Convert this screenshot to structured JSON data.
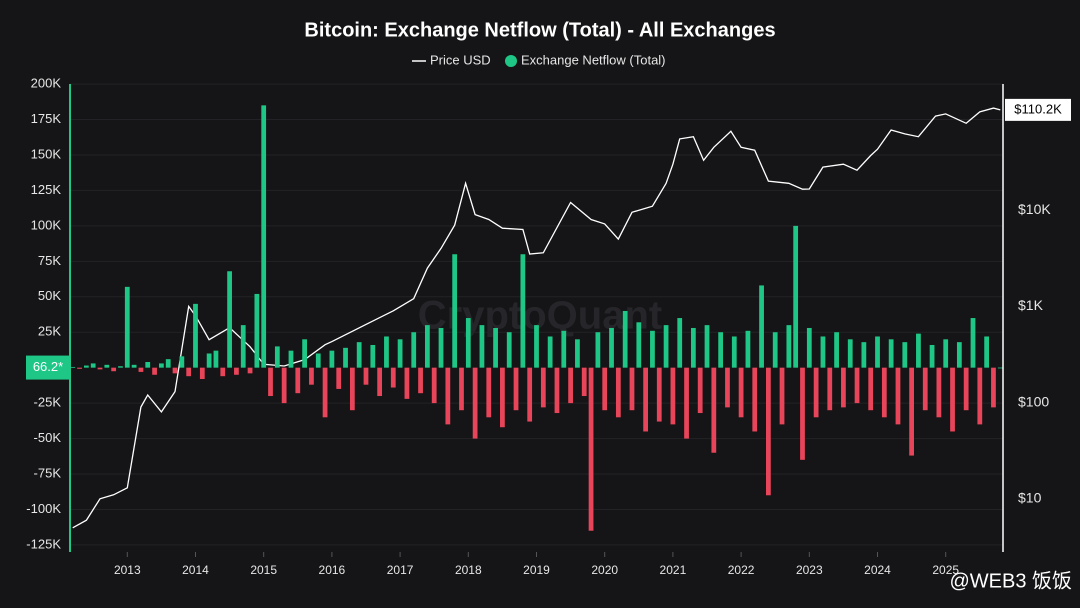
{
  "chart_data": {
    "type": "bar",
    "title": "Bitcoin: Exchange Netflow (Total) - All Exchanges",
    "watermark": "CryptoQuant",
    "credit": "@WEB3 饭饭",
    "xlim": [
      2012.16,
      2025.84
    ],
    "xticks": [
      2013,
      2014,
      2015,
      2016,
      2017,
      2018,
      2019,
      2020,
      2021,
      2022,
      2023,
      2024,
      2025
    ],
    "ylim": [
      -130000,
      205000
    ],
    "yticks": [
      {
        "value": 200000,
        "label": "200K"
      },
      {
        "value": 175000,
        "label": "175K"
      },
      {
        "value": 150000,
        "label": "150K"
      },
      {
        "value": 125000,
        "label": "125K"
      },
      {
        "value": 100000,
        "label": "100K"
      },
      {
        "value": 75000,
        "label": "75K"
      },
      {
        "value": 50000,
        "label": "50K"
      },
      {
        "value": 25000,
        "label": "25K"
      },
      {
        "value": -25000,
        "label": "-25K"
      },
      {
        "value": -50000,
        "label": "-50K"
      },
      {
        "value": -75000,
        "label": "-75K"
      },
      {
        "value": -100000,
        "label": "-100K"
      },
      {
        "value": -125000,
        "label": "-125K"
      }
    ],
    "y2lim": [
      2.8,
      242000
    ],
    "y2log": true,
    "y2ticks": [
      {
        "value": 10,
        "label": "$10"
      },
      {
        "value": 100,
        "label": "$100"
      },
      {
        "value": 1000,
        "label": "$1K"
      },
      {
        "value": 10000,
        "label": "$10K"
      }
    ],
    "series": [
      {
        "name": "Price USD",
        "type": "line",
        "axis": "y2",
        "color": "#ffffff",
        "x": [
          2012.2,
          2012.4,
          2012.6,
          2012.8,
          2013.0,
          2013.2,
          2013.3,
          2013.5,
          2013.7,
          2013.9,
          2014.0,
          2014.2,
          2014.5,
          2014.8,
          2015.0,
          2015.3,
          2015.6,
          2015.9,
          2016.0,
          2016.5,
          2016.9,
          2017.2,
          2017.4,
          2017.6,
          2017.8,
          2017.96,
          2018.1,
          2018.3,
          2018.5,
          2018.8,
          2018.9,
          2019.1,
          2019.5,
          2019.8,
          2020.0,
          2020.2,
          2020.4,
          2020.7,
          2020.9,
          2021.0,
          2021.1,
          2021.3,
          2021.45,
          2021.6,
          2021.85,
          2022.0,
          2022.2,
          2022.4,
          2022.7,
          2022.9,
          2023.0,
          2023.2,
          2023.5,
          2023.7,
          2023.9,
          2024.0,
          2024.2,
          2024.4,
          2024.6,
          2024.85,
          2025.0,
          2025.3,
          2025.5,
          2025.7,
          2025.8
        ],
        "values": [
          5,
          6,
          10,
          11,
          13,
          90,
          120,
          80,
          130,
          1000,
          800,
          450,
          600,
          380,
          250,
          240,
          280,
          400,
          430,
          650,
          900,
          1200,
          2500,
          4000,
          7000,
          19000,
          9000,
          8000,
          6500,
          6300,
          3500,
          3600,
          12000,
          8000,
          7200,
          5000,
          9500,
          11000,
          19000,
          30000,
          55000,
          58000,
          33000,
          45000,
          66000,
          45000,
          42000,
          20000,
          19000,
          16500,
          16600,
          28000,
          30000,
          26000,
          37000,
          43000,
          68000,
          62000,
          58000,
          95000,
          100000,
          80000,
          105000,
          115000,
          110200
        ]
      },
      {
        "name": "Exchange Netflow (Total)",
        "type": "bar",
        "axis": "y",
        "color": "#1fc786",
        "negative_color": "#e8445a",
        "x": [
          2012.2,
          2012.3,
          2012.4,
          2012.5,
          2012.6,
          2012.7,
          2012.8,
          2012.9,
          2013.0,
          2013.1,
          2013.2,
          2013.3,
          2013.4,
          2013.5,
          2013.6,
          2013.7,
          2013.8,
          2013.9,
          2014.0,
          2014.1,
          2014.2,
          2014.3,
          2014.4,
          2014.5,
          2014.6,
          2014.7,
          2014.8,
          2014.9,
          2015.0,
          2015.1,
          2015.2,
          2015.3,
          2015.4,
          2015.5,
          2015.6,
          2015.7,
          2015.8,
          2015.9,
          2016.0,
          2016.1,
          2016.2,
          2016.3,
          2016.4,
          2016.5,
          2016.6,
          2016.7,
          2016.8,
          2016.9,
          2017.0,
          2017.1,
          2017.2,
          2017.3,
          2017.4,
          2017.5,
          2017.6,
          2017.7,
          2017.8,
          2017.9,
          2018.0,
          2018.1,
          2018.2,
          2018.3,
          2018.4,
          2018.5,
          2018.6,
          2018.7,
          2018.8,
          2018.9,
          2019.0,
          2019.1,
          2019.2,
          2019.3,
          2019.4,
          2019.5,
          2019.6,
          2019.7,
          2019.8,
          2019.9,
          2020.0,
          2020.1,
          2020.2,
          2020.3,
          2020.4,
          2020.5,
          2020.6,
          2020.7,
          2020.8,
          2020.9,
          2021.0,
          2021.1,
          2021.2,
          2021.3,
          2021.4,
          2021.5,
          2021.6,
          2021.7,
          2021.8,
          2021.9,
          2022.0,
          2022.1,
          2022.2,
          2022.3,
          2022.4,
          2022.5,
          2022.6,
          2022.7,
          2022.8,
          2022.9,
          2023.0,
          2023.1,
          2023.2,
          2023.3,
          2023.4,
          2023.5,
          2023.6,
          2023.7,
          2023.8,
          2023.9,
          2024.0,
          2024.1,
          2024.2,
          2024.3,
          2024.4,
          2024.5,
          2024.6,
          2024.7,
          2024.8,
          2024.9,
          2025.0,
          2025.1,
          2025.2,
          2025.3,
          2025.4,
          2025.5,
          2025.6,
          2025.7,
          2025.8
        ],
        "values": [
          500,
          -800,
          1500,
          3000,
          -1200,
          2000,
          -2500,
          1000,
          57000,
          2000,
          -3000,
          4000,
          -5000,
          3000,
          6000,
          -4000,
          8000,
          -6000,
          45000,
          -8000,
          10000,
          12000,
          -6000,
          68000,
          -5000,
          30000,
          -4000,
          52000,
          185000,
          -20000,
          15000,
          -25000,
          12000,
          -18000,
          20000,
          -12000,
          10000,
          -35000,
          12000,
          -15000,
          14000,
          -30000,
          18000,
          -12000,
          16000,
          -20000,
          22000,
          -14000,
          20000,
          -22000,
          25000,
          -18000,
          30000,
          -25000,
          28000,
          -40000,
          80000,
          -30000,
          35000,
          -50000,
          30000,
          -35000,
          28000,
          -42000,
          25000,
          -30000,
          80000,
          -38000,
          30000,
          -28000,
          22000,
          -32000,
          26000,
          -25000,
          20000,
          -20000,
          -115000,
          25000,
          -30000,
          28000,
          -35000,
          40000,
          -30000,
          32000,
          -45000,
          26000,
          -38000,
          30000,
          -40000,
          35000,
          -50000,
          28000,
          -32000,
          30000,
          -60000,
          25000,
          -28000,
          22000,
          -35000,
          26000,
          -45000,
          58000,
          -90000,
          25000,
          -40000,
          30000,
          100000,
          -65000,
          28000,
          -35000,
          22000,
          -30000,
          25000,
          -28000,
          20000,
          -25000,
          18000,
          -30000,
          22000,
          -35000,
          20000,
          -40000,
          18000,
          -62000,
          24000,
          -30000,
          16000,
          -35000,
          20000,
          -45000,
          18000,
          -30000,
          35000,
          -40000,
          22000,
          -28000,
          66.2
        ]
      }
    ],
    "annotations": [
      {
        "axis": "y2",
        "value": 110200,
        "label": "$110.2K"
      },
      {
        "axis": "y",
        "value": 66.2,
        "label": "66.2*"
      }
    ]
  }
}
